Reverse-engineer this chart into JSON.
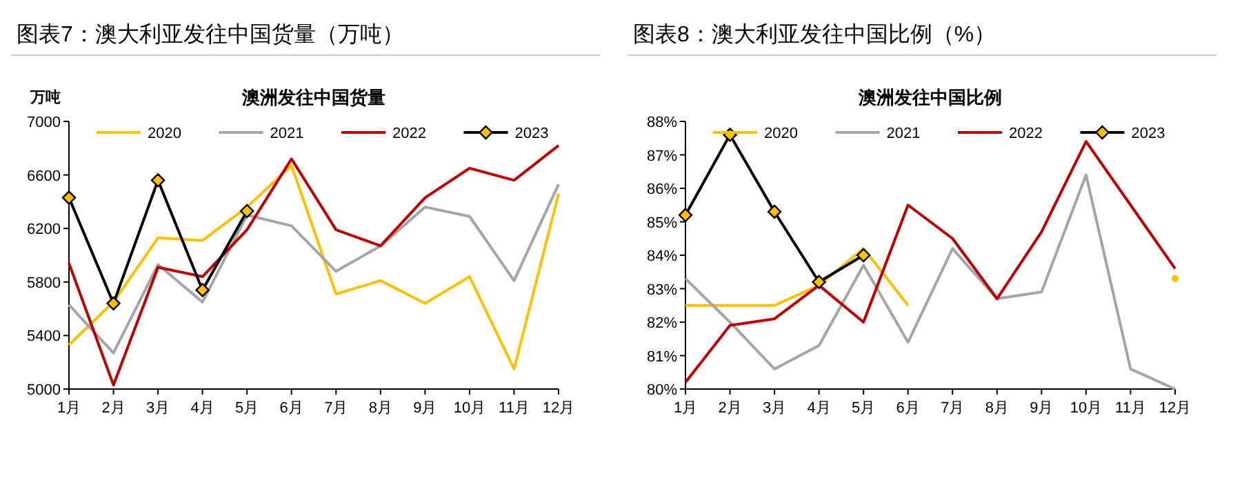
{
  "chart_data": [
    {
      "type": "line",
      "title": "图表7：澳大利亚发往中国货量（万吨）",
      "subtitle": "澳洲发往中国货量",
      "ylabel": "万吨",
      "categories": [
        "1月",
        "2月",
        "3月",
        "4月",
        "5月",
        "6月",
        "7月",
        "8月",
        "9月",
        "10月",
        "11月",
        "12月"
      ],
      "series": [
        {
          "name": "2020",
          "color": "#ffc000",
          "marker": "none",
          "values": [
            5330,
            5650,
            6130,
            6110,
            6360,
            6670,
            5710,
            5810,
            5640,
            5840,
            5150,
            6460
          ]
        },
        {
          "name": "2021",
          "color": "#a5a5a5",
          "marker": "none",
          "values": [
            5630,
            5270,
            5930,
            5650,
            6300,
            6220,
            5880,
            6070,
            6360,
            6290,
            5810,
            6530
          ]
        },
        {
          "name": "2022",
          "color": "#c00000",
          "marker": "none",
          "values": [
            5940,
            5030,
            5910,
            5840,
            6190,
            6720,
            6190,
            6070,
            6430,
            6650,
            6560,
            6820
          ]
        },
        {
          "name": "2023",
          "color": "#000000",
          "marker": "diamond",
          "values": [
            6430,
            5640,
            6560,
            5740,
            6330,
            null,
            null,
            null,
            null,
            null,
            null,
            null
          ]
        }
      ],
      "ylim": [
        5000,
        7000
      ],
      "yticks": [
        5000,
        5400,
        5800,
        6200,
        6600,
        7000
      ],
      "grid": false,
      "legend": "top"
    },
    {
      "type": "line",
      "title": "图表8：澳大利亚发往中国比例（%）",
      "subtitle": "澳洲发往中国比例",
      "categories": [
        "1月",
        "2月",
        "3月",
        "4月",
        "5月",
        "6月",
        "7月",
        "8月",
        "9月",
        "10月",
        "11月",
        "12月"
      ],
      "series": [
        {
          "name": "2020",
          "color": "#ffc000",
          "marker": "none",
          "values": [
            82.5,
            82.5,
            82.5,
            83.1,
            84.2,
            82.5,
            null,
            null,
            null,
            null,
            null,
            83.3
          ]
        },
        {
          "name": "2021",
          "color": "#a5a5a5",
          "marker": "none",
          "values": [
            83.3,
            82.0,
            80.6,
            81.3,
            83.7,
            81.4,
            84.2,
            82.7,
            82.9,
            86.4,
            80.6,
            80.0
          ]
        },
        {
          "name": "2022",
          "color": "#c00000",
          "marker": "none",
          "values": [
            80.2,
            81.9,
            82.1,
            83.1,
            82.0,
            85.5,
            84.5,
            82.7,
            84.7,
            87.4,
            85.5,
            83.6
          ]
        },
        {
          "name": "2023",
          "color": "#000000",
          "marker": "diamond",
          "values": [
            85.2,
            87.6,
            85.3,
            83.2,
            84.0,
            null,
            null,
            null,
            null,
            null,
            null,
            null
          ]
        }
      ],
      "ylim": [
        80,
        88
      ],
      "yticks": [
        {
          "value": 80,
          "label": "80%"
        },
        {
          "value": 81,
          "label": "81%"
        },
        {
          "value": 82,
          "label": "82%"
        },
        {
          "value": 83,
          "label": "83%"
        },
        {
          "value": 84,
          "label": "84%"
        },
        {
          "value": 85,
          "label": "85%"
        },
        {
          "value": 86,
          "label": "86%"
        },
        {
          "value": 87,
          "label": "87%"
        },
        {
          "value": 88,
          "label": "88%"
        }
      ],
      "grid": false,
      "legend": "top"
    }
  ]
}
